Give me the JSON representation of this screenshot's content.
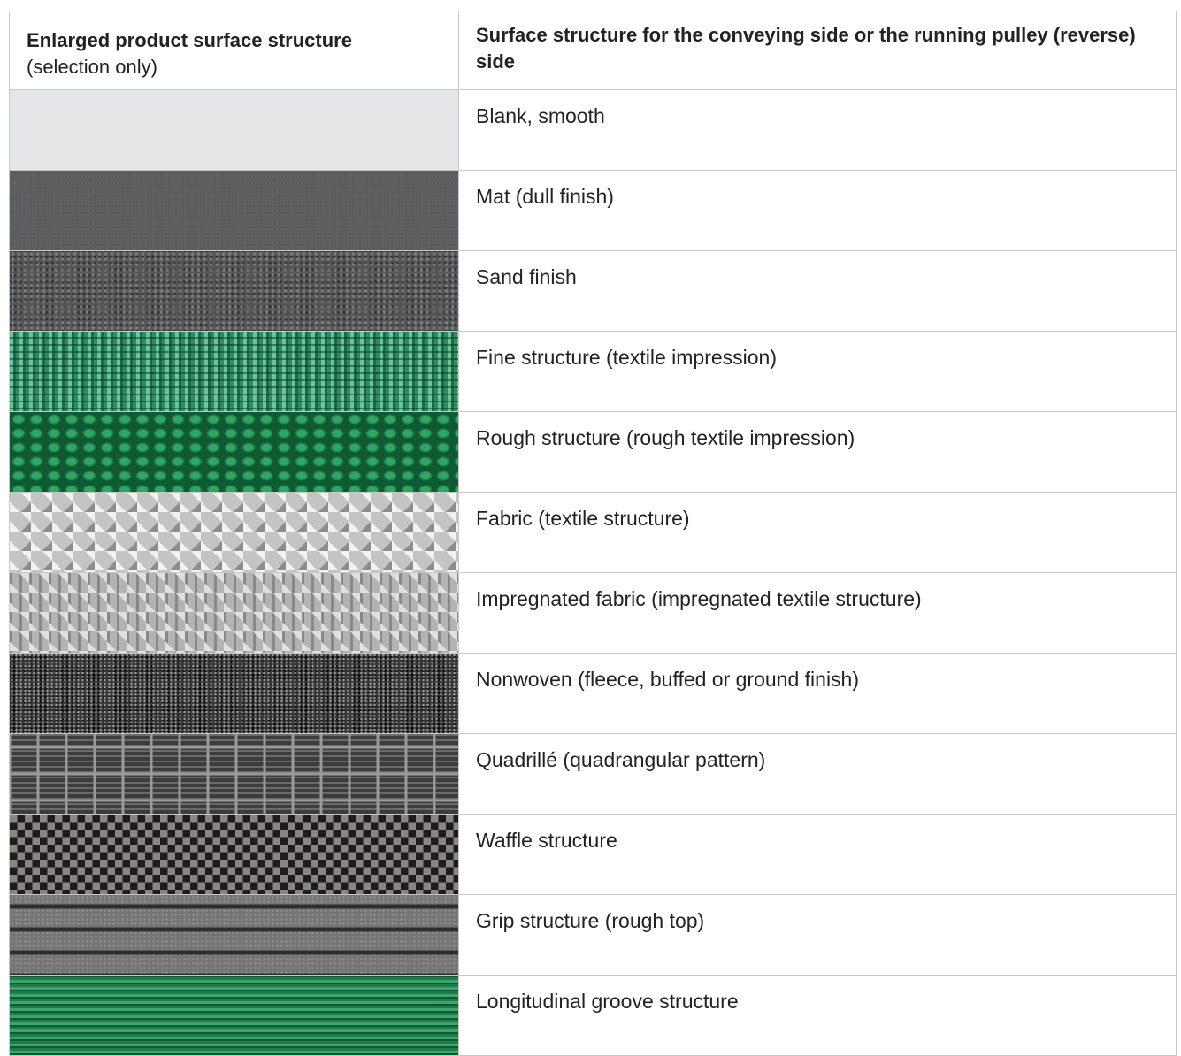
{
  "table": {
    "header": {
      "left_title": "Enlarged product surface structure",
      "left_note": "(selection only)",
      "right_title": "Surface structure for the conveying side or the running pulley (reverse) side"
    },
    "rows": [
      "Blank, smooth",
      "Mat (dull finish)",
      "Sand finish",
      "Fine structure (textile impression)",
      "Rough structure (rough textile impression)",
      "Fabric (textile structure)",
      "Impregnated fabric (impregnated textile structure)",
      "Nonwoven (fleece, buffed or ground finish)",
      "Quadrillé (quadrangular pattern)",
      "Waffle structure",
      "Grip structure (rough top)",
      "Longitudinal groove structure"
    ]
  }
}
